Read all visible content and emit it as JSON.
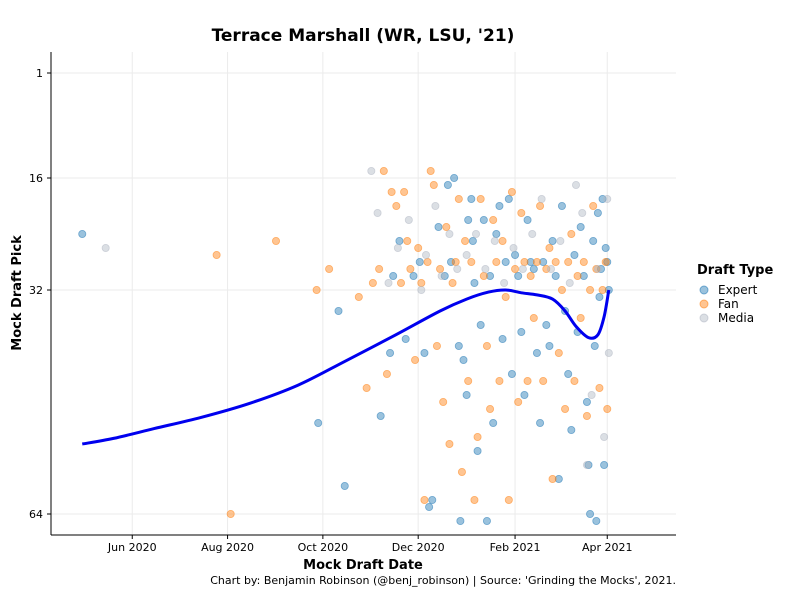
{
  "chart_data": {
    "type": "scatter",
    "title": "Terrace Marshall (WR, LSU, '21)",
    "xlabel": "Mock Draft Date",
    "ylabel": "Mock Draft Pick",
    "caption": "Chart by: Benjamin Robinson (@benj_robinson) | Source: 'Grinding the Mocks', 2021.",
    "legend": {
      "title": "Draft Type",
      "placement": "right"
    },
    "x_ticks": [
      "2020-06-01",
      "2020-08-01",
      "2020-10-01",
      "2020-12-01",
      "2021-02-01",
      "2021-04-01"
    ],
    "x_tick_labels": [
      "Jun 2020",
      "Aug 2020",
      "Oct 2020",
      "Dec 2020",
      "Feb 2021",
      "Apr 2021"
    ],
    "xlim": [
      "2020-04-10",
      "2021-05-15"
    ],
    "y_ticks": [
      1,
      16,
      32,
      64
    ],
    "ylim": [
      67,
      -2
    ],
    "y_reversed": true,
    "grid": true,
    "series": [
      {
        "name": "Expert",
        "color": "#1f77b4",
        "points": [
          [
            "2020-04-30",
            24
          ],
          [
            "2020-09-28",
            51
          ],
          [
            "2020-10-11",
            35
          ],
          [
            "2020-10-15",
            60
          ],
          [
            "2020-11-07",
            50
          ],
          [
            "2020-11-13",
            41
          ],
          [
            "2020-11-15",
            30
          ],
          [
            "2020-11-19",
            25
          ],
          [
            "2020-11-23",
            39
          ],
          [
            "2020-11-28",
            30
          ],
          [
            "2020-12-02",
            28
          ],
          [
            "2020-12-05",
            41
          ],
          [
            "2020-12-08",
            63
          ],
          [
            "2020-12-10",
            62
          ],
          [
            "2020-12-14",
            23
          ],
          [
            "2020-12-18",
            30
          ],
          [
            "2020-12-20",
            17
          ],
          [
            "2020-12-22",
            28
          ],
          [
            "2020-12-24",
            16
          ],
          [
            "2020-12-27",
            40
          ],
          [
            "2020-12-28",
            65
          ],
          [
            "2020-12-30",
            42
          ],
          [
            "2021-01-01",
            47
          ],
          [
            "2021-01-02",
            22
          ],
          [
            "2021-01-04",
            19
          ],
          [
            "2021-01-05",
            25
          ],
          [
            "2021-01-06",
            31
          ],
          [
            "2021-01-08",
            55
          ],
          [
            "2021-01-10",
            37
          ],
          [
            "2021-01-12",
            22
          ],
          [
            "2021-01-14",
            65
          ],
          [
            "2021-01-16",
            30
          ],
          [
            "2021-01-18",
            51
          ],
          [
            "2021-01-20",
            24
          ],
          [
            "2021-01-22",
            20
          ],
          [
            "2021-01-24",
            39
          ],
          [
            "2021-01-26",
            28
          ],
          [
            "2021-01-28",
            19
          ],
          [
            "2021-01-30",
            44
          ],
          [
            "2021-02-01",
            27
          ],
          [
            "2021-02-03",
            30
          ],
          [
            "2021-02-05",
            38
          ],
          [
            "2021-02-07",
            47
          ],
          [
            "2021-02-09",
            22
          ],
          [
            "2021-02-11",
            28
          ],
          [
            "2021-02-13",
            29
          ],
          [
            "2021-02-15",
            41
          ],
          [
            "2021-02-17",
            51
          ],
          [
            "2021-02-19",
            28
          ],
          [
            "2021-02-21",
            37
          ],
          [
            "2021-02-23",
            40
          ],
          [
            "2021-02-25",
            25
          ],
          [
            "2021-02-27",
            30
          ],
          [
            "2021-03-01",
            59
          ],
          [
            "2021-03-03",
            20
          ],
          [
            "2021-03-05",
            35
          ],
          [
            "2021-03-07",
            44
          ],
          [
            "2021-03-09",
            52
          ],
          [
            "2021-03-11",
            27
          ],
          [
            "2021-03-13",
            38
          ],
          [
            "2021-03-15",
            23
          ],
          [
            "2021-03-17",
            30
          ],
          [
            "2021-03-19",
            48
          ],
          [
            "2021-03-20",
            57
          ],
          [
            "2021-03-21",
            64
          ],
          [
            "2021-03-23",
            25
          ],
          [
            "2021-03-24",
            40
          ],
          [
            "2021-03-25",
            65
          ],
          [
            "2021-03-26",
            21
          ],
          [
            "2021-03-27",
            33
          ],
          [
            "2021-03-28",
            29
          ],
          [
            "2021-03-29",
            19
          ],
          [
            "2021-03-30",
            57
          ],
          [
            "2021-03-31",
            26
          ],
          [
            "2021-04-01",
            28
          ],
          [
            "2021-04-02",
            32
          ]
        ]
      },
      {
        "name": "Fan",
        "color": "#ff7f0e",
        "points": [
          [
            "2020-07-25",
            27
          ],
          [
            "2020-08-03",
            64
          ],
          [
            "2020-09-01",
            25
          ],
          [
            "2020-09-27",
            32
          ],
          [
            "2020-10-05",
            29
          ],
          [
            "2020-10-24",
            33
          ],
          [
            "2020-10-29",
            46
          ],
          [
            "2020-11-02",
            31
          ],
          [
            "2020-11-06",
            29
          ],
          [
            "2020-11-09",
            15
          ],
          [
            "2020-11-11",
            44
          ],
          [
            "2020-11-14",
            18
          ],
          [
            "2020-11-17",
            20
          ],
          [
            "2020-11-20",
            31
          ],
          [
            "2020-11-22",
            18
          ],
          [
            "2020-11-24",
            25
          ],
          [
            "2020-11-26",
            29
          ],
          [
            "2020-11-29",
            42
          ],
          [
            "2020-12-01",
            26
          ],
          [
            "2020-12-03",
            31
          ],
          [
            "2020-12-05",
            62
          ],
          [
            "2020-12-07",
            28
          ],
          [
            "2020-12-09",
            15
          ],
          [
            "2020-12-11",
            17
          ],
          [
            "2020-12-13",
            40
          ],
          [
            "2020-12-15",
            29
          ],
          [
            "2020-12-17",
            48
          ],
          [
            "2020-12-19",
            23
          ],
          [
            "2020-12-21",
            54
          ],
          [
            "2020-12-23",
            31
          ],
          [
            "2020-12-25",
            28
          ],
          [
            "2020-12-27",
            19
          ],
          [
            "2020-12-29",
            58
          ],
          [
            "2020-12-31",
            25
          ],
          [
            "2021-01-02",
            45
          ],
          [
            "2021-01-04",
            28
          ],
          [
            "2021-01-06",
            62
          ],
          [
            "2021-01-08",
            53
          ],
          [
            "2021-01-10",
            19
          ],
          [
            "2021-01-12",
            30
          ],
          [
            "2021-01-14",
            40
          ],
          [
            "2021-01-16",
            49
          ],
          [
            "2021-01-18",
            22
          ],
          [
            "2021-01-20",
            28
          ],
          [
            "2021-01-22",
            45
          ],
          [
            "2021-01-24",
            25
          ],
          [
            "2021-01-26",
            33
          ],
          [
            "2021-01-28",
            62
          ],
          [
            "2021-01-30",
            18
          ],
          [
            "2021-02-01",
            29
          ],
          [
            "2021-02-03",
            48
          ],
          [
            "2021-02-05",
            21
          ],
          [
            "2021-02-07",
            28
          ],
          [
            "2021-02-09",
            45
          ],
          [
            "2021-02-11",
            30
          ],
          [
            "2021-02-13",
            36
          ],
          [
            "2021-02-15",
            28
          ],
          [
            "2021-02-17",
            20
          ],
          [
            "2021-02-19",
            45
          ],
          [
            "2021-02-21",
            29
          ],
          [
            "2021-02-23",
            26
          ],
          [
            "2021-02-25",
            59
          ],
          [
            "2021-02-27",
            28
          ],
          [
            "2021-03-01",
            41
          ],
          [
            "2021-03-03",
            32
          ],
          [
            "2021-03-05",
            49
          ],
          [
            "2021-03-07",
            28
          ],
          [
            "2021-03-09",
            24
          ],
          [
            "2021-03-11",
            45
          ],
          [
            "2021-03-13",
            30
          ],
          [
            "2021-03-15",
            36
          ],
          [
            "2021-03-17",
            28
          ],
          [
            "2021-03-19",
            50
          ],
          [
            "2021-03-21",
            32
          ],
          [
            "2021-03-23",
            20
          ],
          [
            "2021-03-25",
            29
          ],
          [
            "2021-03-27",
            46
          ],
          [
            "2021-03-29",
            32
          ],
          [
            "2021-03-31",
            28
          ],
          [
            "2021-04-01",
            49
          ]
        ]
      },
      {
        "name": "Media",
        "color": "#b0b7c3",
        "points": [
          [
            "2020-05-15",
            26
          ],
          [
            "2020-11-01",
            15
          ],
          [
            "2020-11-05",
            21
          ],
          [
            "2020-11-12",
            31
          ],
          [
            "2020-11-18",
            26
          ],
          [
            "2020-11-25",
            22
          ],
          [
            "2020-12-03",
            32
          ],
          [
            "2020-12-06",
            27
          ],
          [
            "2020-12-12",
            20
          ],
          [
            "2020-12-16",
            30
          ],
          [
            "2020-12-21",
            24
          ],
          [
            "2020-12-26",
            29
          ],
          [
            "2021-01-01",
            27
          ],
          [
            "2021-01-07",
            24
          ],
          [
            "2021-01-13",
            29
          ],
          [
            "2021-01-19",
            25
          ],
          [
            "2021-01-25",
            31
          ],
          [
            "2021-01-31",
            26
          ],
          [
            "2021-02-06",
            29
          ],
          [
            "2021-02-12",
            24
          ],
          [
            "2021-02-18",
            19
          ],
          [
            "2021-02-24",
            29
          ],
          [
            "2021-03-02",
            25
          ],
          [
            "2021-03-08",
            31
          ],
          [
            "2021-03-12",
            17
          ],
          [
            "2021-03-16",
            21
          ],
          [
            "2021-03-19",
            57
          ],
          [
            "2021-03-22",
            47
          ],
          [
            "2021-03-26",
            29
          ],
          [
            "2021-03-30",
            53
          ],
          [
            "2021-04-01",
            19
          ],
          [
            "2021-04-02",
            41
          ]
        ]
      }
    ],
    "trend": {
      "color": "#0000ee",
      "points": [
        [
          "2020-04-30",
          54
        ],
        [
          "2020-05-20",
          53.2
        ],
        [
          "2020-06-15",
          51.8
        ],
        [
          "2020-07-15",
          50.2
        ],
        [
          "2020-08-15",
          48.2
        ],
        [
          "2020-09-15",
          45.6
        ],
        [
          "2020-10-15",
          42.2
        ],
        [
          "2020-11-15",
          38.6
        ],
        [
          "2020-12-15",
          35.0
        ],
        [
          "2021-01-01",
          33.3
        ],
        [
          "2021-01-15",
          32.3
        ],
        [
          "2021-01-26",
          32.0
        ],
        [
          "2021-02-05",
          32.4
        ],
        [
          "2021-02-15",
          32.7
        ],
        [
          "2021-02-25",
          33.3
        ],
        [
          "2021-03-05",
          35.0
        ],
        [
          "2021-03-12",
          37.2
        ],
        [
          "2021-03-20",
          38.8
        ],
        [
          "2021-03-26",
          38.4
        ],
        [
          "2021-03-30",
          35.8
        ],
        [
          "2021-04-02",
          32
        ]
      ]
    }
  }
}
